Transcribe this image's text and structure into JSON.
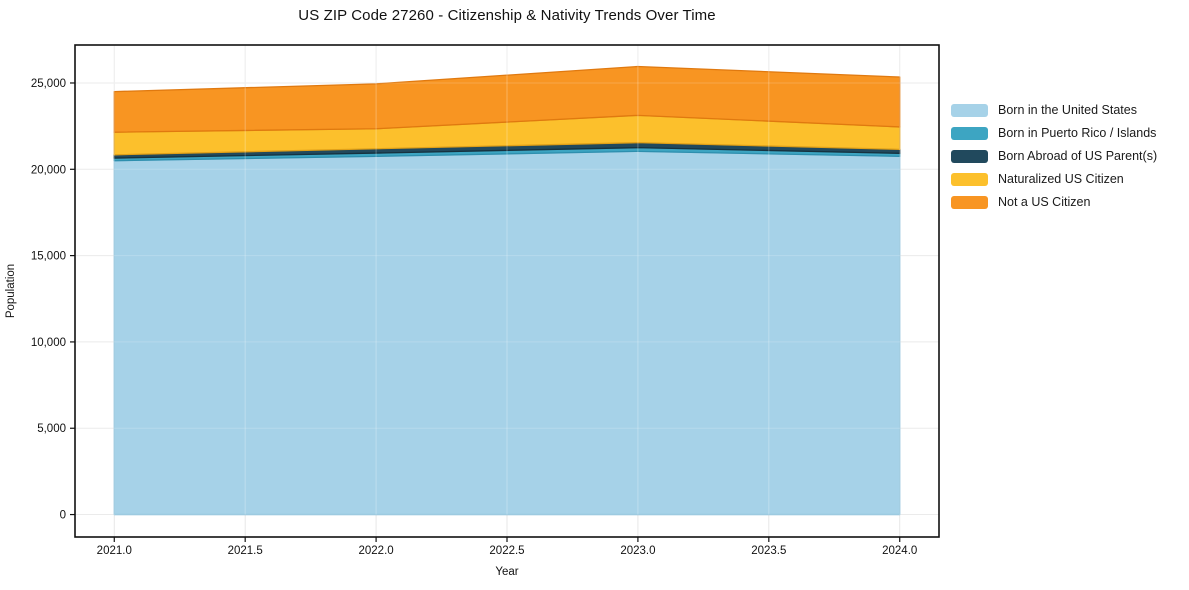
{
  "chart_data": {
    "type": "area",
    "stacked": true,
    "title": "US ZIP Code 27260 - Citizenship & Nativity Trends Over Time",
    "xlabel": "Year",
    "ylabel": "Population",
    "x": [
      2021,
      2022,
      2023,
      2024
    ],
    "series": [
      {
        "name": "Born in the United States",
        "color": "#a6d2e8",
        "edge": "#88bfda",
        "values": [
          20500,
          20750,
          21040,
          20750
        ]
      },
      {
        "name": "Born in Puerto Rico / Islands",
        "color": "#3da5c2",
        "edge": "#2e8fae",
        "values": [
          150,
          190,
          215,
          175
        ]
      },
      {
        "name": "Born Abroad of US Parent(s)",
        "color": "#21495d",
        "edge": "#16323f",
        "values": [
          190,
          250,
          290,
          230
        ]
      },
      {
        "name": "Naturalized US Citizen",
        "color": "#fcc02c",
        "edge": "#e0a018",
        "values": [
          1310,
          1160,
          1580,
          1300
        ]
      },
      {
        "name": "Not a US Citizen",
        "color": "#f89522",
        "edge": "#e0790f",
        "values": [
          2350,
          2600,
          2830,
          2890
        ]
      }
    ],
    "totals": [
      24500,
      24950,
      25955,
      25345
    ],
    "xlim": [
      2020.85,
      2024.15
    ],
    "ylim": [
      -1300,
      27200
    ],
    "xticks": {
      "values": [
        2021.0,
        2021.5,
        2022.0,
        2022.5,
        2023.0,
        2023.5,
        2024.0
      ],
      "labels": [
        "2021.0",
        "2021.5",
        "2022.0",
        "2022.5",
        "2023.0",
        "2023.5",
        "2024.0"
      ]
    },
    "yticks": {
      "values": [
        0,
        5000,
        10000,
        15000,
        20000,
        25000
      ],
      "labels": [
        "0",
        "5,000",
        "10,000",
        "15,000",
        "20,000",
        "25,000"
      ]
    },
    "grid": true,
    "legend_position": "right-outside",
    "colors": {
      "grid": "#e7e7e7",
      "spine": "#111111",
      "tick": "#111111",
      "text": "#111111",
      "background": "#ffffff"
    }
  }
}
